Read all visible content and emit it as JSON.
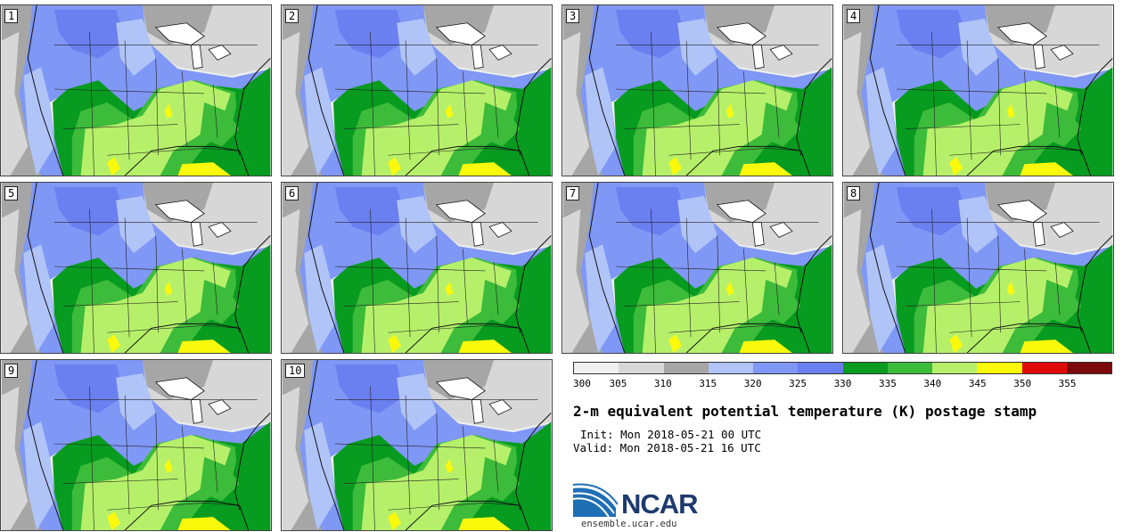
{
  "panels": [
    {
      "label": "1"
    },
    {
      "label": "2"
    },
    {
      "label": "3"
    },
    {
      "label": "4"
    },
    {
      "label": "5"
    },
    {
      "label": "6"
    },
    {
      "label": "7"
    },
    {
      "label": "8"
    },
    {
      "label": "9"
    },
    {
      "label": "10"
    }
  ],
  "colorbar": {
    "colors": [
      "#f0f0f0",
      "#d7d7d7",
      "#a6a6a6",
      "#b0c4f8",
      "#7f97f5",
      "#6a7ff0",
      "#079b1f",
      "#3dbb3a",
      "#b6f06a",
      "#fbf90b",
      "#e00a0a",
      "#7d0a0a"
    ],
    "ticks": [
      "300",
      "305",
      "310",
      "315",
      "320",
      "325",
      "330",
      "335",
      "340",
      "345",
      "350",
      "355"
    ]
  },
  "title": "2-m equivalent potential temperature (K) postage stamp",
  "init": "Init: Mon 2018-05-21 00 UTC",
  "valid": "Valid: Mon 2018-05-21 16 UTC",
  "logo": {
    "text": "NCAR"
  },
  "url": "ensemble.ucar.edu"
}
